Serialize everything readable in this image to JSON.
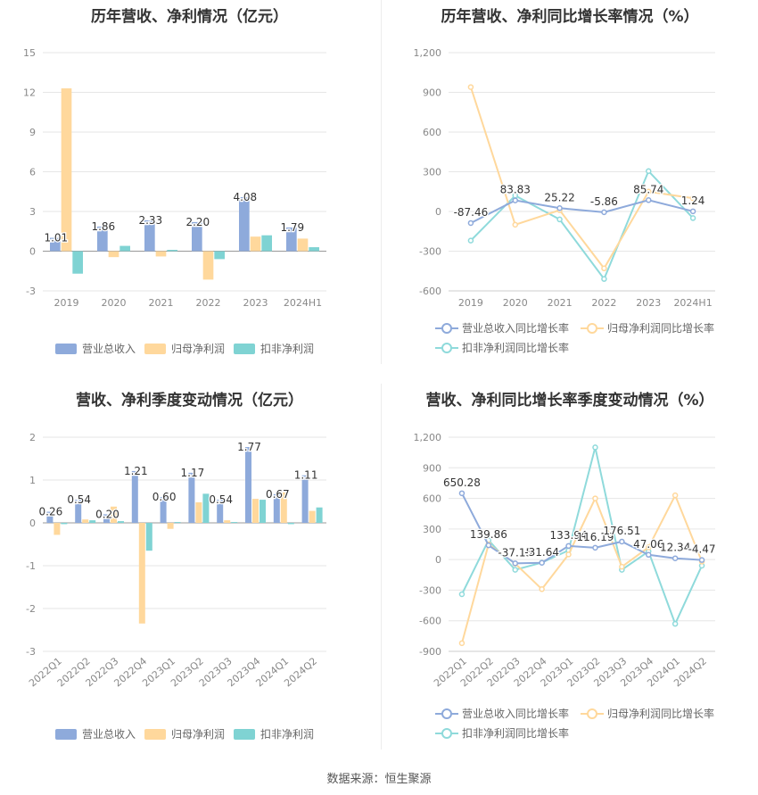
{
  "source_text": "数据来源：恒生聚源",
  "colors": {
    "revenue": "#8eaadb",
    "net_profit": "#ffd89c",
    "deducted_profit": "#7fd3d3",
    "revenue_line": "#8eaadb",
    "net_profit_line": "#ffd89c",
    "deducted_line": "#8fdadb"
  },
  "chart_data": [
    {
      "type": "bar",
      "title": "历年营收、净利情况（亿元）",
      "categories": [
        "2019",
        "2020",
        "2021",
        "2022",
        "2023",
        "2024H1"
      ],
      "ylim": [
        -3,
        15
      ],
      "yticks": [
        -3,
        0,
        3,
        6,
        9,
        12,
        15
      ],
      "series": [
        {
          "name": "营业总收入",
          "values": [
            1.01,
            1.86,
            2.33,
            2.2,
            4.08,
            1.79
          ]
        },
        {
          "name": "归母净利润",
          "values": [
            12.3,
            -0.45,
            -0.4,
            -2.15,
            1.1,
            0.95
          ]
        },
        {
          "name": "扣非净利润",
          "values": [
            -1.7,
            0.4,
            0.1,
            -0.6,
            1.2,
            0.3
          ]
        }
      ],
      "data_labels": [
        "1.01",
        "1.86",
        "2.33",
        "2.20",
        "4.08",
        "1.79"
      ],
      "legend": "bottom"
    },
    {
      "type": "line",
      "title": "历年营收、净利同比增长率情况（%）",
      "categories": [
        "2019",
        "2020",
        "2021",
        "2022",
        "2023",
        "2024H1"
      ],
      "ylim": [
        -600,
        1200
      ],
      "yticks": [
        "-600",
        "-300",
        "0",
        "300",
        "600",
        "900",
        "1,200"
      ],
      "ytick_values": [
        -600,
        -300,
        0,
        300,
        600,
        900,
        1200
      ],
      "series": [
        {
          "name": "营业总收入同比增长率",
          "values": [
            -87.46,
            83.83,
            25.22,
            -5.86,
            85.74,
            1.24
          ]
        },
        {
          "name": "归母净利润同比增长率",
          "values": [
            940,
            -100,
            10,
            -430,
            150,
            100
          ]
        },
        {
          "name": "扣非净利润同比增长率",
          "values": [
            -220,
            120,
            -60,
            -510,
            305,
            -50
          ]
        }
      ],
      "data_labels": [
        "-87.46",
        "83.83",
        "25.22",
        "-5.86",
        "85.74",
        "1.24"
      ],
      "legend": "bottom"
    },
    {
      "type": "bar",
      "title": "营收、净利季度变动情况（亿元）",
      "categories": [
        "2022Q1",
        "2022Q2",
        "2022Q3",
        "2022Q4",
        "2023Q1",
        "2023Q2",
        "2023Q3",
        "2023Q4",
        "2024Q1",
        "2024Q2"
      ],
      "ylim": [
        -3,
        2
      ],
      "yticks": [
        -3,
        -2,
        -1,
        0,
        1,
        2
      ],
      "series": [
        {
          "name": "营业总收入",
          "values": [
            0.26,
            0.54,
            0.2,
            1.21,
            0.6,
            1.17,
            0.54,
            1.77,
            0.67,
            1.11
          ]
        },
        {
          "name": "归母净利润",
          "values": [
            -0.28,
            0.08,
            0.38,
            -2.35,
            -0.14,
            0.48,
            0.06,
            0.56,
            0.71,
            0.28
          ]
        },
        {
          "name": "扣非净利润",
          "values": [
            -0.03,
            0.06,
            0.04,
            -0.65,
            0.02,
            0.68,
            0.02,
            0.54,
            -0.03,
            0.36
          ]
        }
      ],
      "data_labels": [
        "0.26",
        "0.54",
        "0.20",
        "1.21",
        "0.60",
        "1.17",
        "0.54",
        "1.77",
        "0.67",
        "1.11"
      ],
      "legend": "bottom"
    },
    {
      "type": "line",
      "title": "营收、净利同比增长率季度变动情况（%）",
      "categories": [
        "2022Q1",
        "2022Q2",
        "2022Q3",
        "2022Q4",
        "2023Q1",
        "2023Q2",
        "2023Q3",
        "2023Q4",
        "2024Q1",
        "2024Q2"
      ],
      "ylim": [
        -900,
        1200
      ],
      "yticks": [
        "-900",
        "-600",
        "-300",
        "0",
        "300",
        "600",
        "900",
        "1,200"
      ],
      "ytick_values": [
        -900,
        -600,
        -300,
        0,
        300,
        600,
        900,
        1200
      ],
      "series": [
        {
          "name": "营业总收入同比增长率",
          "values": [
            650.28,
            139.86,
            -37.15,
            -31.64,
            133.94,
            116.19,
            176.51,
            47.06,
            12.34,
            -4.47
          ]
        },
        {
          "name": "归母净利润同比增长率",
          "values": [
            -820,
            150,
            -40,
            -290,
            50,
            600,
            -70,
            120,
            630,
            -20
          ]
        },
        {
          "name": "扣非净利润同比增长率",
          "values": [
            -340,
            190,
            -100,
            -30,
            90,
            1100,
            -100,
            80,
            -630,
            -60
          ]
        }
      ],
      "data_labels": [
        "650.28",
        "139.86",
        "-37.15",
        "-31.64",
        "133.94",
        "116.19",
        "176.51",
        "47.06",
        "12.34",
        "-4.47"
      ],
      "legend": "bottom"
    }
  ]
}
